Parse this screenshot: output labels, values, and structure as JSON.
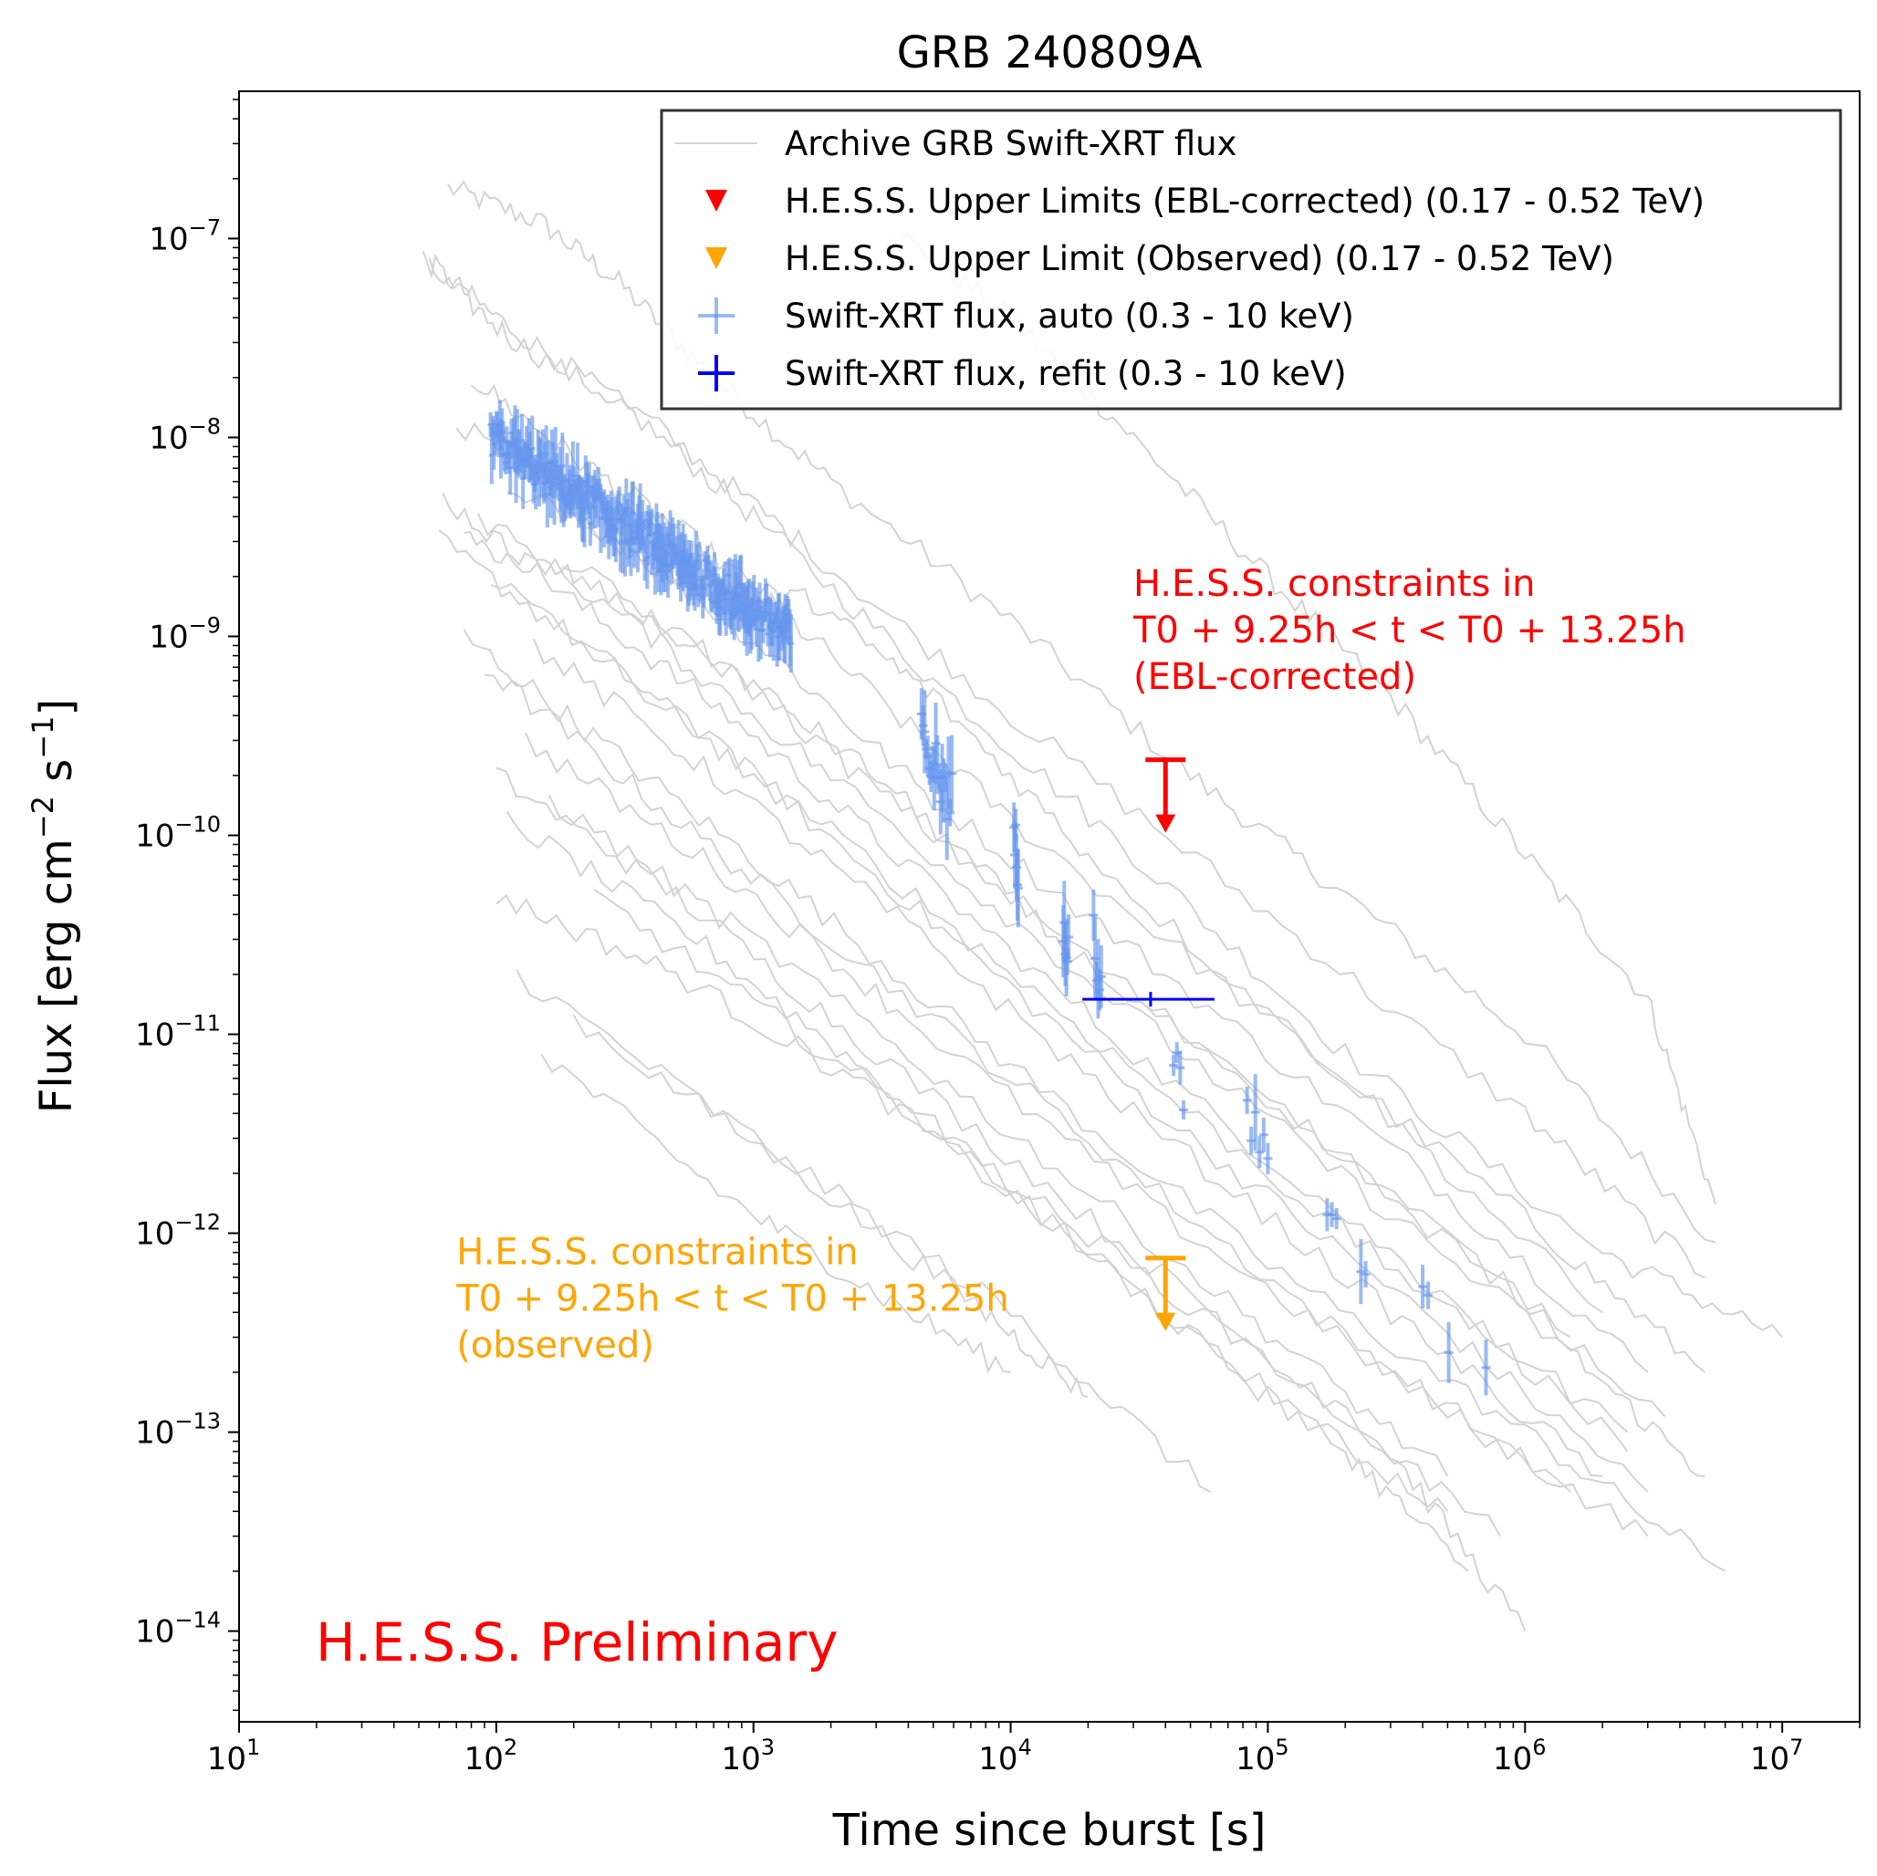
{
  "chart_data": {
    "type": "line",
    "title": "GRB 240809A",
    "xlabel": "Time since burst [s]",
    "ylabel_base": "Flux [erg cm",
    "ylabel_exp1": "−2",
    "ylabel_mid": " s",
    "ylabel_exp2": "−1",
    "ylabel_end": "]",
    "x_scale": "log",
    "y_scale": "log",
    "xlim": [
      10,
      20000000
    ],
    "ylim": [
      3.5e-15,
      5.5e-07
    ],
    "x_ticks": [
      {
        "value": 10,
        "base": "10",
        "exp": "1"
      },
      {
        "value": 100,
        "base": "10",
        "exp": "2"
      },
      {
        "value": 1000,
        "base": "10",
        "exp": "3"
      },
      {
        "value": 10000,
        "base": "10",
        "exp": "4"
      },
      {
        "value": 100000,
        "base": "10",
        "exp": "5"
      },
      {
        "value": 1000000,
        "base": "10",
        "exp": "6"
      },
      {
        "value": 10000000,
        "base": "10",
        "exp": "7"
      }
    ],
    "y_ticks": [
      {
        "value": 1e-14,
        "base": "10",
        "exp": "−14"
      },
      {
        "value": 1e-13,
        "base": "10",
        "exp": "−13"
      },
      {
        "value": 1e-12,
        "base": "10",
        "exp": "−12"
      },
      {
        "value": 1e-11,
        "base": "10",
        "exp": "−11"
      },
      {
        "value": 1e-10,
        "base": "10",
        "exp": "−10"
      },
      {
        "value": 1e-09,
        "base": "10",
        "exp": "−9"
      },
      {
        "value": 1e-08,
        "base": "10",
        "exp": "−8"
      },
      {
        "value": 1e-07,
        "base": "10",
        "exp": "−7"
      }
    ],
    "grid": false,
    "legend_position": "top-right",
    "legend": [
      {
        "label": "Archive GRB Swift-XRT flux",
        "marker": "line",
        "color": "#d3d3d3"
      },
      {
        "label": "H.E.S.S. Upper Limits (EBL-corrected) (0.17 - 0.52 TeV)",
        "marker": "triangle-down",
        "color": "#ff0000"
      },
      {
        "label": "H.E.S.S. Upper Limit (Observed) (0.17 - 0.52 TeV)",
        "marker": "triangle-down",
        "color": "#ffa500"
      },
      {
        "label": "Swift-XRT flux, auto (0.3 - 10 keV)",
        "marker": "cross",
        "color": "#6495ed"
      },
      {
        "label": "Swift-XRT flux, refit (0.3 - 10 keV)",
        "marker": "cross",
        "color": "#0000ff"
      }
    ],
    "archive_curves": [
      {
        "points": [
          [
            65,
            1.8e-07
          ],
          [
            150,
            1.2e-07
          ],
          [
            300,
            6e-08
          ],
          [
            700,
            2e-08
          ],
          [
            2000,
            6e-09
          ],
          [
            10000,
            1.2e-09
          ],
          [
            50000,
            2e-10
          ],
          [
            200000,
            5e-11
          ],
          [
            1000000,
            1e-11
          ],
          [
            5500000,
            9e-13
          ]
        ]
      },
      {
        "points": [
          [
            3500,
            1.1e-07
          ],
          [
            10000,
            4e-08
          ],
          [
            30000,
            1e-08
          ],
          [
            100000,
            2e-09
          ],
          [
            300000,
            5e-10
          ],
          [
            1000000,
            8e-11
          ],
          [
            3000000,
            1.5e-11
          ],
          [
            5500000,
            1.4e-12
          ]
        ]
      },
      {
        "points": [
          [
            52,
            8e-08
          ],
          [
            100,
            4e-08
          ],
          [
            300,
            1.5e-08
          ],
          [
            1000,
            4e-09
          ],
          [
            5000,
            6e-10
          ],
          [
            30000,
            8e-11
          ],
          [
            200000,
            8e-12
          ],
          [
            2000000,
            8e-13
          ],
          [
            10000000,
            3e-13
          ]
        ]
      },
      {
        "points": [
          [
            55,
            7e-08
          ],
          [
            120,
            3e-08
          ],
          [
            400,
            1.2e-08
          ],
          [
            1500,
            3e-09
          ],
          [
            10000,
            4e-10
          ],
          [
            100000,
            4e-11
          ],
          [
            1000000,
            4e-12
          ],
          [
            5000000,
            6e-13
          ]
        ]
      },
      {
        "points": [
          [
            80,
            2e-08
          ],
          [
            200,
            8e-09
          ],
          [
            600,
            3e-09
          ],
          [
            2000,
            8e-10
          ],
          [
            10000,
            1.2e-10
          ],
          [
            100000,
            1.2e-11
          ],
          [
            1000000,
            1.2e-12
          ],
          [
            5000000,
            2e-13
          ]
        ]
      },
      {
        "points": [
          [
            70,
            1.2e-08
          ],
          [
            300,
            3e-09
          ],
          [
            1200,
            8e-10
          ],
          [
            5000,
            1.5e-10
          ],
          [
            40000,
            2e-11
          ],
          [
            400000,
            2e-12
          ],
          [
            3000000,
            2e-13
          ]
        ]
      },
      {
        "points": [
          [
            62,
            5e-09
          ],
          [
            200,
            1.5e-09
          ],
          [
            800,
            4e-10
          ],
          [
            4000,
            7e-11
          ],
          [
            30000,
            8e-12
          ],
          [
            300000,
            8e-13
          ],
          [
            2500000,
            8e-14
          ]
        ]
      },
      {
        "points": [
          [
            60,
            3e-09
          ],
          [
            250,
            8e-10
          ],
          [
            1000,
            2e-10
          ],
          [
            6000,
            3e-11
          ],
          [
            50000,
            3e-12
          ],
          [
            400000,
            4e-13
          ],
          [
            3000000,
            5e-14
          ]
        ]
      },
      {
        "points": [
          [
            75,
            1e-09
          ],
          [
            300,
            2.5e-10
          ],
          [
            1500,
            5e-11
          ],
          [
            10000,
            7e-12
          ],
          [
            100000,
            7e-13
          ],
          [
            1000000,
            1e-13
          ],
          [
            6000000,
            2e-14
          ]
        ]
      },
      {
        "points": [
          [
            90,
            7e-10
          ],
          [
            400,
            1.5e-10
          ],
          [
            2000,
            3e-11
          ],
          [
            20000,
            3e-12
          ],
          [
            200000,
            3e-13
          ],
          [
            1500000,
            5e-14
          ]
        ]
      },
      {
        "points": [
          [
            100,
            2e-10
          ],
          [
            500,
            5e-11
          ],
          [
            3000,
            8e-12
          ],
          [
            30000,
            8e-13
          ],
          [
            300000,
            8e-14
          ],
          [
            1000000,
            1e-14
          ]
        ]
      },
      {
        "points": [
          [
            110,
            1.2e-10
          ],
          [
            600,
            3e-11
          ],
          [
            3000,
            6e-12
          ],
          [
            20000,
            8e-13
          ],
          [
            200000,
            8e-14
          ],
          [
            600000,
            2e-14
          ]
        ]
      },
      {
        "points": [
          [
            120,
            2e-11
          ],
          [
            1000,
            3e-12
          ],
          [
            10000,
            4e-13
          ],
          [
            60000,
            5e-14
          ]
        ]
      },
      {
        "points": [
          [
            150,
            8e-12
          ],
          [
            800,
            1.5e-12
          ],
          [
            3000,
            5e-13
          ],
          [
            10000,
            2e-13
          ]
        ]
      },
      {
        "points": [
          [
            200,
            1.2e-11
          ],
          [
            1500,
            2e-12
          ],
          [
            8000,
            4e-13
          ],
          [
            20000,
            1.5e-13
          ]
        ]
      },
      {
        "points": [
          [
            100,
            5e-11
          ],
          [
            500,
            2e-11
          ],
          [
            3000,
            5e-12
          ],
          [
            20000,
            8e-13
          ],
          [
            100000,
            1.5e-13
          ],
          [
            500000,
            4e-14
          ]
        ]
      },
      {
        "points": [
          [
            130,
            3e-10
          ],
          [
            700,
            7e-11
          ],
          [
            4000,
            1.2e-11
          ],
          [
            40000,
            1.2e-12
          ],
          [
            400000,
            1.5e-13
          ],
          [
            3000000,
            3e-14
          ]
        ]
      },
      {
        "points": [
          [
            85,
            4e-09
          ],
          [
            400,
            1e-09
          ],
          [
            2000,
            2e-10
          ],
          [
            15000,
            2.5e-11
          ],
          [
            150000,
            2.5e-12
          ],
          [
            1500000,
            2.5e-13
          ],
          [
            5000000,
            6e-14
          ]
        ]
      },
      {
        "points": [
          [
            95,
            2e-09
          ],
          [
            500,
            4e-10
          ],
          [
            3000,
            7e-11
          ],
          [
            25000,
            8e-12
          ],
          [
            250000,
            8e-13
          ],
          [
            2500000,
            1e-13
          ]
        ]
      },
      {
        "points": [
          [
            110,
            6e-09
          ],
          [
            500,
            2e-09
          ],
          [
            1700,
            1.5e-09
          ],
          [
            5000,
            5e-10
          ],
          [
            20000,
            8e-11
          ],
          [
            200000,
            6e-12
          ],
          [
            2000000,
            4e-13
          ]
        ]
      },
      {
        "points": [
          [
            160,
            1.5e-10
          ],
          [
            1000,
            3e-11
          ],
          [
            8000,
            4e-12
          ],
          [
            80000,
            4e-13
          ],
          [
            500000,
            6e-14
          ]
        ]
      },
      {
        "points": [
          [
            240,
            5e-11
          ],
          [
            1500,
            1e-11
          ],
          [
            12000,
            1.5e-12
          ],
          [
            120000,
            2e-13
          ],
          [
            800000,
            3e-14
          ]
        ]
      },
      {
        "points": [
          [
            180,
            2.5e-09
          ],
          [
            900,
            6e-10
          ],
          [
            5000,
            1e-10
          ],
          [
            40000,
            1.2e-11
          ],
          [
            400000,
            1.2e-12
          ],
          [
            3500000,
            1.2e-13
          ]
        ]
      },
      {
        "points": [
          [
            140,
            9e-10
          ],
          [
            700,
            2e-10
          ],
          [
            4000,
            3.5e-11
          ],
          [
            30000,
            4e-12
          ],
          [
            300000,
            4e-13
          ],
          [
            2000000,
            6e-14
          ]
        ]
      },
      {
        "points": [
          [
            75,
            3e-09
          ],
          [
            200,
            2e-09
          ],
          [
            800,
            7e-10
          ],
          [
            3000,
            2e-10
          ],
          [
            15000,
            3e-11
          ],
          [
            150000,
            3e-12
          ],
          [
            1500000,
            3e-13
          ]
        ]
      }
    ],
    "xrt_auto_segments": [
      {
        "x": [
          95,
          1400
        ],
        "y_start": 1e-08,
        "y_end": 1e-09,
        "scatter": 0.35,
        "count": 260
      },
      {
        "x": [
          4500,
          5900
        ],
        "y_start": 3e-10,
        "y_end": 1.5e-10,
        "scatter": 0.5,
        "count": 20
      },
      {
        "x": [
          10300,
          10700
        ],
        "y_start": 1e-10,
        "y_end": 7e-11,
        "scatter": 0.45,
        "count": 6
      },
      {
        "x": [
          16000,
          16800
        ],
        "y_start": 4e-11,
        "y_end": 3e-11,
        "scatter": 0.5,
        "count": 6
      },
      {
        "x": [
          21000,
          22500
        ],
        "y_start": 3e-11,
        "y_end": 2e-11,
        "scatter": 0.5,
        "count": 6
      },
      {
        "x": [
          43000,
          47000
        ],
        "y_start": 8e-12,
        "y_end": 5e-12,
        "scatter": 0.3,
        "count": 4
      },
      {
        "x": [
          83000,
          100000
        ],
        "y_start": 4e-12,
        "y_end": 2.5e-12,
        "scatter": 0.4,
        "count": 6
      },
      {
        "x": [
          170000,
          185000
        ],
        "y_start": 1.25e-12,
        "y_end": 1.2e-12,
        "scatter": 0.03,
        "count": 3
      },
      {
        "x": [
          230000,
          240000
        ],
        "y_start": 7e-13,
        "y_end": 6e-13,
        "scatter": 0.3,
        "count": 2
      },
      {
        "x": [
          400000,
          420000
        ],
        "y_start": 5e-13,
        "y_end": 4e-13,
        "scatter": 0.3,
        "count": 2
      },
      {
        "x": [
          500000,
          510000
        ],
        "y_start": 2.5e-13,
        "y_end": 2.5e-13,
        "scatter": 0.3,
        "count": 1
      },
      {
        "x": [
          700000,
          710000
        ],
        "y_start": 2e-13,
        "y_end": 2e-13,
        "scatter": 0.3,
        "count": 1
      }
    ],
    "xrt_refit": {
      "x": 35000,
      "x_low": 19000,
      "x_high": 62000,
      "y": 1.5e-11,
      "y_err": 0.2
    },
    "hess_ul_ebl": {
      "x": 40000,
      "y": 2.4e-10,
      "color": "#ff0000"
    },
    "hess_ul_obs": {
      "x": 40000,
      "y": 7.5e-13,
      "color": "#ffa500"
    },
    "annotations": [
      {
        "lines": [
          "H.E.S.S. constraints in",
          "T0 + 9.25h < t < T0 + 13.25h",
          "(EBL-corrected)"
        ],
        "color": "#ff0000",
        "x": 30000,
        "y": 1.6e-09
      },
      {
        "lines": [
          "H.E.S.S. constraints in",
          "T0 + 9.25h < t < T0 + 13.25h",
          "(observed)"
        ],
        "color": "#ffa500",
        "x": 70,
        "y": 7e-13
      }
    ],
    "watermark": {
      "text": "H.E.S.S. Preliminary",
      "color": "#ff0000",
      "position": "bottom-left"
    }
  }
}
